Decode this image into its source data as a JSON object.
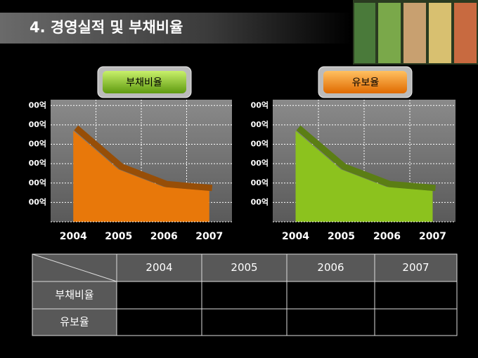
{
  "header": {
    "title": "4. 경영실적 및 부채비율"
  },
  "chart_data": [
    {
      "type": "area",
      "title": "부채비율",
      "categories": [
        "2004",
        "2005",
        "2006",
        "2007"
      ],
      "values": [
        4.7,
        2.7,
        1.8,
        1.6
      ],
      "color": "#e8780a",
      "ylim": [
        0,
        6.3
      ],
      "yticks": [
        {
          "value": 1,
          "label": "00억"
        },
        {
          "value": 2,
          "label": "00억"
        },
        {
          "value": 3,
          "label": "00억"
        },
        {
          "value": 4,
          "label": "00억"
        },
        {
          "value": 5,
          "label": "00억"
        },
        {
          "value": 6,
          "label": "00억"
        }
      ],
      "grid": true
    },
    {
      "type": "area",
      "title": "유보율",
      "categories": [
        "2004",
        "2005",
        "2006",
        "2007"
      ],
      "values": [
        4.7,
        2.7,
        1.8,
        1.6
      ],
      "color": "#8cc21e",
      "ylim": [
        0,
        6.3
      ],
      "yticks": [
        {
          "value": 1,
          "label": "00억"
        },
        {
          "value": 2,
          "label": "00억"
        },
        {
          "value": 3,
          "label": "00억"
        },
        {
          "value": 4,
          "label": "00억"
        },
        {
          "value": 5,
          "label": "00억"
        },
        {
          "value": 6,
          "label": "00억"
        }
      ],
      "grid": true
    }
  ],
  "table": {
    "columns": [
      "2004",
      "2005",
      "2006",
      "2007"
    ],
    "row_labels": [
      "부채비율",
      "유보율"
    ]
  }
}
